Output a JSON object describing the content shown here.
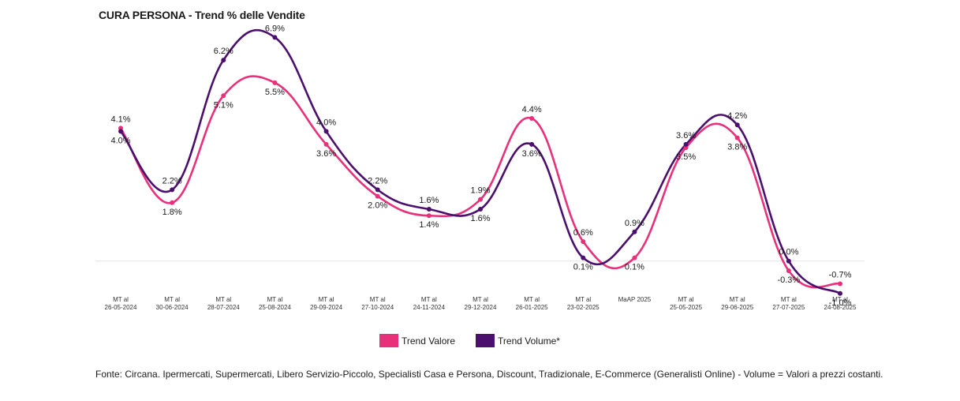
{
  "title": "CURA PERSONA - Trend % delle Vendite",
  "source_note": "Fonte: Circana. Ipermercati, Supermercati, Libero Servizio-Piccolo, Specialisti Casa e Persona, Discount, Tradizionale, E-Commerce (Generalisti Online) - Volume = Valori a prezzi costanti.",
  "legend": [
    {
      "label": "Trend Valore",
      "color": "#e8317a"
    },
    {
      "label": "Trend Volume*",
      "color": "#4b0f6e"
    }
  ],
  "chart_data": {
    "type": "line",
    "categories": [
      [
        "MT al",
        "26-05-2024"
      ],
      [
        "MT al",
        "30-06-2024"
      ],
      [
        "MT al",
        "28-07-2024"
      ],
      [
        "MT al",
        "25-08-2024"
      ],
      [
        "MT al",
        "29-09-2024"
      ],
      [
        "MT al",
        "27-10-2024"
      ],
      [
        "MT al",
        "24-11-2024"
      ],
      [
        "MT al",
        "29-12-2024"
      ],
      [
        "MT al",
        "26-01-2025"
      ],
      [
        "MT al",
        "23-02-2025"
      ],
      [
        "MaAP 2025"
      ],
      [
        "MT al",
        "25-05-2025"
      ],
      [
        "MT al",
        "29-06-2025"
      ],
      [
        "MT al",
        "27-07-2025"
      ],
      [
        "MT al",
        "24-08-2025"
      ]
    ],
    "series": [
      {
        "name": "Trend Valore",
        "color": "#e8317a",
        "values": [
          4.1,
          1.8,
          5.1,
          5.5,
          3.6,
          2.0,
          1.4,
          1.9,
          4.4,
          0.6,
          0.1,
          3.5,
          3.8,
          -0.3,
          -0.7
        ],
        "labels": [
          "4.1%",
          "1.8%",
          "5.1%",
          "5.5%",
          "3.6%",
          "2.0%",
          "1.4%",
          "1.9%",
          "4.4%",
          "0.6%",
          "0.1%",
          "3.5%",
          "3.8%",
          "-0.3%",
          "-0.7%"
        ]
      },
      {
        "name": "Trend Volume*",
        "color": "#4b0f6e",
        "values": [
          4.0,
          2.2,
          6.2,
          6.9,
          4.0,
          2.2,
          1.6,
          1.6,
          3.6,
          0.1,
          0.9,
          3.6,
          4.2,
          0.0,
          -1.0
        ],
        "labels": [
          "4.0%",
          "2.2%",
          "6.2%",
          "6.9%",
          "4.0%",
          "2.2%",
          "1.6%",
          "1.6%",
          "3.6%",
          "0.1%",
          "0.9%",
          "3.6%",
          "4.2%",
          "0.0%",
          "-1.0%"
        ]
      }
    ],
    "ylim": [
      -1.2,
      7.2
    ],
    "grid": false,
    "legend_position": "bottom"
  }
}
